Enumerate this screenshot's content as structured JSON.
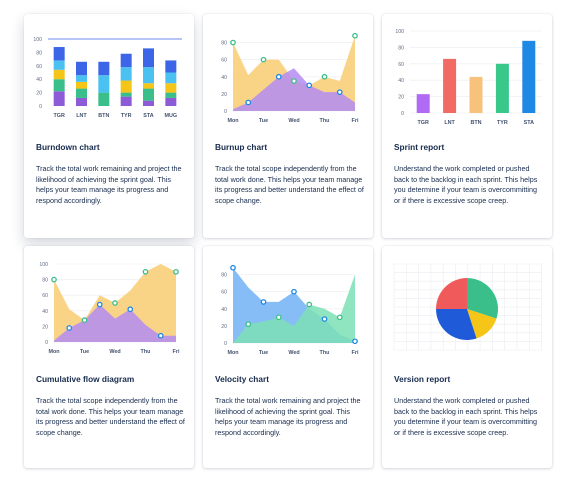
{
  "colors": {
    "dark_blue": "#2747b8",
    "mid_blue": "#3c65e7",
    "cyan": "#4bc1f2",
    "yellow": "#f5c518",
    "green": "#3bbf8a",
    "purple": "#8e5bd8",
    "red": "#f05a5a",
    "bar_purple": "#b06af3",
    "bar_red": "#f26a64",
    "bar_orange": "#f7c37c",
    "bar_green": "#39c78a",
    "bar_blue": "#1e88e5",
    "area_orange": "#f8cf7a",
    "area_salmon": "#e6947a",
    "area_violet": "#b48cf2",
    "area_blue": "#79b6f6",
    "area_teal": "#46c7b6",
    "area_mint": "#7ce0b6"
  },
  "cards": [
    {
      "title": "Burndown chart",
      "description": "Track the total work remaining and project the likelihood of achieving the sprint goal. This helps your team manage its progress and respond accordingly."
    },
    {
      "title": "Burnup chart",
      "description": "Track the total scope independently from the total work done. This helps your team manage its progress and better understand the effect of scope change."
    },
    {
      "title": "Sprint report",
      "description": "Understand the work completed or pushed back to the backlog in each sprint. This helps you determine if your team is overcommitting or if there is excessive scope creep."
    },
    {
      "title": "Cumulative flow diagram",
      "description": "Track the total scope independently from the total work done. This helps your team manage its progress and better understand the effect of scope change."
    },
    {
      "title": "Velocity chart",
      "description": "Track the total work remaining and project the likelihood of achieving the sprint goal. This helps your team manage its progress and respond accordingly."
    },
    {
      "title": "Version report",
      "description": "Understand the work completed or pushed back to the backlog in each sprint. This helps you determine if your team is overcommitting or if there is excessive scope creep."
    }
  ],
  "chart_data": [
    {
      "type": "bar",
      "stacked": true,
      "categories": [
        "TGR",
        "LNT",
        "BTN",
        "TYR",
        "STA",
        "MUG"
      ],
      "yticks": [
        0,
        20,
        40,
        60,
        80,
        100
      ],
      "ylim": [
        0,
        100
      ],
      "series": [
        {
          "color": "#8e5bd8",
          "values": [
            22,
            12,
            0,
            14,
            8,
            12
          ]
        },
        {
          "color": "#3bbf8a",
          "values": [
            18,
            14,
            20,
            6,
            18,
            8
          ]
        },
        {
          "color": "#f5c518",
          "values": [
            14,
            10,
            0,
            18,
            8,
            14
          ]
        },
        {
          "color": "#4bc1f2",
          "values": [
            14,
            10,
            26,
            20,
            24,
            16
          ]
        },
        {
          "color": "#3c65e7",
          "values": [
            20,
            20,
            20,
            20,
            28,
            18
          ]
        }
      ],
      "reference_line": 100
    },
    {
      "type": "area",
      "categories": [
        "Mon",
        "Tue",
        "Wed",
        "Thu",
        "Fri"
      ],
      "yticks": [
        0,
        20,
        40,
        60,
        80
      ],
      "ylim": [
        0,
        90
      ],
      "series": [
        {
          "x": [
            0,
            0.5,
            1,
            1.5,
            2,
            2.5,
            3,
            3.5,
            4
          ],
          "values": [
            80,
            42,
            60,
            60,
            35,
            30,
            40,
            35,
            88
          ]
        },
        {
          "x": [
            0,
            0.5,
            1,
            1.5,
            2,
            2.5,
            3,
            3.5,
            4
          ],
          "values": [
            2,
            10,
            25,
            40,
            50,
            30,
            22,
            22,
            10
          ]
        }
      ]
    },
    {
      "type": "bar",
      "categories": [
        "TGR",
        "LNT",
        "BTN",
        "TYR",
        "STA"
      ],
      "values": [
        23,
        66,
        44,
        60,
        88
      ],
      "yticks": [
        0,
        20,
        40,
        60,
        80,
        100
      ],
      "ylim": [
        0,
        100
      ]
    },
    {
      "type": "area",
      "categories": [
        "Mon",
        "Tue",
        "Wed",
        "Thu",
        "Fri"
      ],
      "yticks": [
        0,
        20,
        40,
        60,
        80,
        100
      ],
      "ylim": [
        0,
        100
      ],
      "series": [
        {
          "x": [
            0,
            0.5,
            1,
            1.5,
            2,
            2.5,
            3,
            3.5,
            4
          ],
          "values": [
            80,
            42,
            28,
            60,
            50,
            66,
            90,
            100,
            90
          ]
        },
        {
          "x": [
            0,
            0.5,
            1,
            1.5,
            2,
            2.5,
            3,
            3.5,
            4
          ],
          "values": [
            2,
            18,
            28,
            48,
            30,
            42,
            22,
            8,
            8
          ]
        }
      ]
    },
    {
      "type": "area",
      "categories": [
        "Mon",
        "Tue",
        "Wed",
        "Thu",
        "Fri"
      ],
      "yticks": [
        0,
        20,
        40,
        60,
        80
      ],
      "ylim": [
        0,
        90
      ],
      "series": [
        {
          "x": [
            0,
            0.5,
            1,
            1.5,
            2,
            2.5,
            3,
            3.5,
            4
          ],
          "values": [
            88,
            65,
            48,
            48,
            60,
            40,
            28,
            10,
            2
          ]
        },
        {
          "x": [
            0,
            0.5,
            1,
            1.5,
            2,
            2.5,
            3,
            3.5,
            4
          ],
          "values": [
            0,
            22,
            25,
            30,
            20,
            45,
            40,
            30,
            80
          ]
        }
      ]
    },
    {
      "type": "pie",
      "values": [
        30,
        15,
        30,
        25
      ],
      "colors": [
        "#3bbf8a",
        "#f5c518",
        "#1f5bd8",
        "#f05a5a"
      ]
    }
  ]
}
